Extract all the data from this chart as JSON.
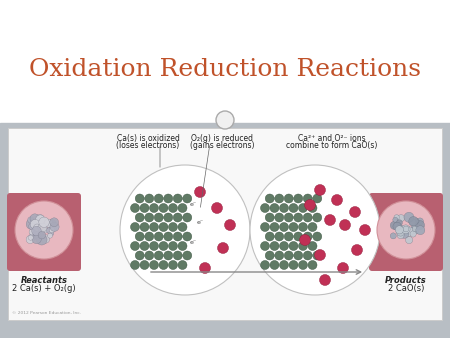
{
  "title": "Oxidation Reduction Reactions",
  "title_color": "#C0522A",
  "title_fontsize": 18,
  "bg_white": "#FFFFFF",
  "content_gray": "#B8BEC4",
  "panel_white": "#F8F8F8",
  "panel_border": "#CCCCCC",
  "label1_line1": "Ca(s) is oxidized",
  "label1_line2": "(loses electrons)",
  "label2_line1": "O₂(g) is reduced",
  "label2_line2": "(gains electrons)",
  "label3_line1": "Ca²⁺ and O²⁻ ions",
  "label3_line2": "combine to form CaO(s)",
  "reactants_label": "Reactants",
  "reactants_formula": "2 Ca(s) + O₂(g)",
  "products_label": "Products",
  "products_formula": "2 CaO(s)",
  "copyright": "© 2012 Pearson Education, Inc.",
  "green_color": "#607A65",
  "green_edge": "#3A5540",
  "red_color": "#C03055",
  "red_edge": "#901838",
  "plate_pink": "#B86070",
  "dish_pink": "#D09098",
  "dish_light": "#E8B8C0",
  "ca_gray1": "#B8B8C0",
  "ca_gray2": "#909098",
  "arrow_color": "#888888",
  "label_fs": 5.5,
  "sub_fs": 6.0
}
